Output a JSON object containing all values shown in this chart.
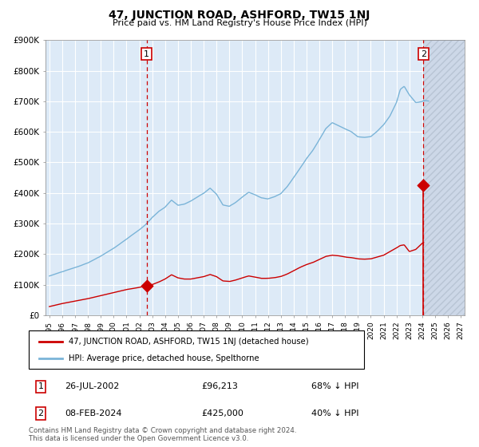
{
  "title": "47, JUNCTION ROAD, ASHFORD, TW15 1NJ",
  "subtitle": "Price paid vs. HM Land Registry's House Price Index (HPI)",
  "hpi_color": "#7ab4d8",
  "price_color": "#cc0000",
  "bg_color": "#ddeaf7",
  "ylim": [
    0,
    900000
  ],
  "yticks": [
    0,
    100000,
    200000,
    300000,
    400000,
    500000,
    600000,
    700000,
    800000,
    900000
  ],
  "ytick_labels": [
    "£0",
    "£100K",
    "£200K",
    "£300K",
    "£400K",
    "£500K",
    "£600K",
    "£700K",
    "£800K",
    "£900K"
  ],
  "x_start_year": 1995,
  "x_end_year": 2027,
  "sale1_year": 2002.57,
  "sale1_price": 96213,
  "sale1_label": "1",
  "sale1_date": "26-JUL-2002",
  "sale1_amount": "£96,213",
  "sale1_pct": "68% ↓ HPI",
  "sale2_year": 2024.1,
  "sale2_price": 425000,
  "sale2_label": "2",
  "sale2_date": "08-FEB-2024",
  "sale2_amount": "£425,000",
  "sale2_pct": "40% ↓ HPI",
  "legend_line1": "47, JUNCTION ROAD, ASHFORD, TW15 1NJ (detached house)",
  "legend_line2": "HPI: Average price, detached house, Spelthorne",
  "footer_line1": "Contains HM Land Registry data © Crown copyright and database right 2024.",
  "footer_line2": "This data is licensed under the Open Government Licence v3.0."
}
